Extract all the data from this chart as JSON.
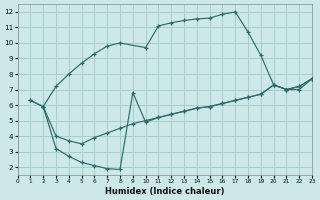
{
  "background_color": "#cce8e8",
  "grid_color": "#aacccc",
  "line_color": "#2d6b6b",
  "xlabel": "Humidex (Indice chaleur)",
  "xlim": [
    0,
    23
  ],
  "ylim": [
    1.5,
    12.5
  ],
  "xticks": [
    0,
    1,
    2,
    3,
    4,
    5,
    6,
    7,
    8,
    9,
    10,
    11,
    12,
    13,
    14,
    15,
    16,
    17,
    18,
    19,
    20,
    21,
    22,
    23
  ],
  "yticks": [
    2,
    3,
    4,
    5,
    6,
    7,
    8,
    9,
    10,
    11,
    12
  ],
  "curve1_x": [
    1,
    2,
    3,
    4,
    5,
    6,
    7,
    8,
    10,
    11,
    12,
    13,
    14,
    15,
    16,
    17,
    18,
    19,
    20,
    21,
    22,
    23
  ],
  "curve1_y": [
    6.3,
    5.9,
    7.2,
    8.0,
    8.7,
    9.3,
    9.8,
    10.0,
    9.7,
    11.1,
    11.3,
    11.45,
    11.55,
    11.6,
    11.85,
    12.0,
    10.7,
    9.2,
    7.3,
    7.0,
    7.0,
    7.7
  ],
  "curve2_x": [
    1,
    2,
    3,
    4,
    5,
    6,
    7,
    8,
    9,
    10,
    11,
    12,
    13,
    14,
    15,
    16,
    17,
    18,
    19,
    20,
    21,
    22,
    23
  ],
  "curve2_y": [
    6.3,
    5.9,
    4.0,
    3.7,
    3.5,
    3.9,
    4.2,
    4.5,
    4.8,
    5.0,
    5.2,
    5.4,
    5.6,
    5.8,
    5.9,
    6.1,
    6.3,
    6.5,
    6.7,
    7.3,
    7.0,
    7.2,
    7.7
  ],
  "curve3_x": [
    2,
    3,
    4,
    5,
    6,
    7,
    8,
    9,
    10,
    11,
    12,
    13,
    14,
    15,
    16,
    17,
    18,
    19,
    20,
    21,
    22,
    23
  ],
  "curve3_y": [
    5.9,
    3.2,
    2.7,
    2.3,
    2.1,
    1.9,
    1.85,
    6.8,
    4.9,
    5.2,
    5.4,
    5.6,
    5.8,
    5.9,
    6.1,
    6.3,
    6.5,
    6.7,
    7.3,
    7.0,
    7.2,
    7.7
  ]
}
